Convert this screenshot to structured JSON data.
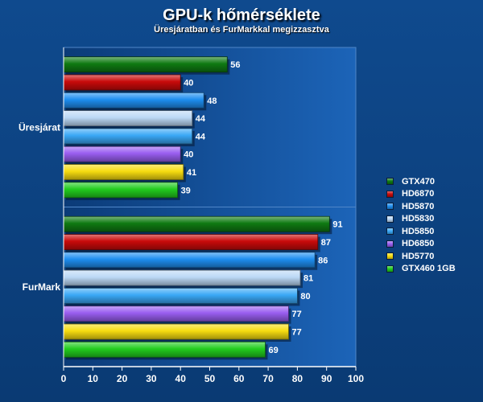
{
  "chart_data": {
    "type": "bar",
    "orientation": "horizontal",
    "title": "GPU-k hőmérséklete",
    "subtitle": "Üresjáratban és FurMarkkal megizzasztva",
    "categories": [
      "Üresjárat",
      "FurMark"
    ],
    "series": [
      {
        "name": "GTX470",
        "color": "#0f7a12",
        "values": [
          56,
          91
        ]
      },
      {
        "name": "HD6870",
        "color": "#c80a0a",
        "values": [
          40,
          87
        ]
      },
      {
        "name": "HD5870",
        "color": "#1e8ef0",
        "values": [
          48,
          86
        ]
      },
      {
        "name": "HD5830",
        "color": "#bcd9f6",
        "values": [
          44,
          81
        ]
      },
      {
        "name": "HD5850",
        "color": "#3aa8f6",
        "values": [
          44,
          80
        ]
      },
      {
        "name": "HD6850",
        "color": "#9a5ef0",
        "values": [
          40,
          77
        ]
      },
      {
        "name": "HD5770",
        "color": "#f6dc10",
        "values": [
          41,
          77
        ]
      },
      {
        "name": "GTX460 1GB",
        "color": "#22cc1e",
        "values": [
          39,
          69
        ]
      }
    ],
    "xlim": [
      0,
      100
    ],
    "xticks": [
      0,
      10,
      20,
      30,
      40,
      50,
      60,
      70,
      80,
      90,
      100
    ],
    "legend": "right",
    "grid": false
  }
}
